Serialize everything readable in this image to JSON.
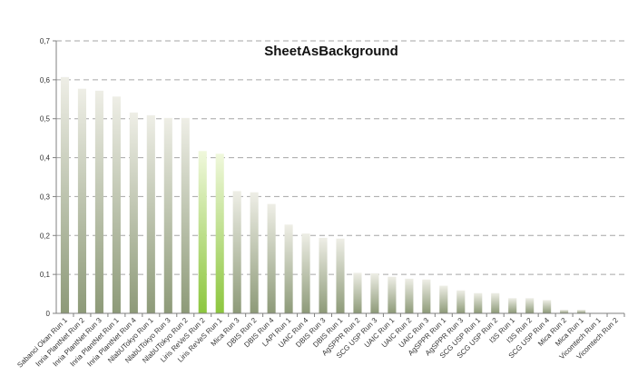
{
  "chart_data": {
    "type": "bar",
    "title": "SheetAsBackground",
    "xlabel": "",
    "ylabel": "",
    "ylim": [
      0,
      0.7
    ],
    "yticks": [
      "0",
      "0,1",
      "0,2",
      "0,3",
      "0,4",
      "0,5",
      "0,6",
      "0,7"
    ],
    "grid": true,
    "legend": "none",
    "categories": [
      "Sabanci Okan Run 1",
      "Inria PlantNet Run 2",
      "Inria PlantNet Run 3",
      "Inria PlantNet Run 1",
      "Inria PlantNet Run 4",
      "NlabUTokyo Run 1",
      "NlabUTokyo Run 3",
      "NlabUTokyo Run 2",
      "Liris ReVeS Run 2",
      "Liris ReVeS Run 1",
      "Mica Run 3",
      "DBIS Run 2",
      "DBIS Run 4",
      "LAPI Run 1",
      "UAIC Run 4",
      "DBIS Run 3",
      "DBIS Run 1",
      "AgSPPR Run 2",
      "SCG USP Run 3",
      "UAIC Run 1",
      "UAIC Run 2",
      "UAIC Run 3",
      "AgSPPR Run 1",
      "AgSPPR Run 3",
      "SCG USP Run 1",
      "SCG USP Run 2",
      "I3S Run 1",
      "I3S Run 2",
      "SCG USP Run 4",
      "Mica Run 2",
      "Mica Run 1",
      "Vicomtech Run 1",
      "Vicomtech Run 2"
    ],
    "values": [
      0.607,
      0.577,
      0.572,
      0.557,
      0.516,
      0.509,
      0.502,
      0.502,
      0.417,
      0.41,
      0.314,
      0.311,
      0.281,
      0.228,
      0.205,
      0.194,
      0.192,
      0.104,
      0.103,
      0.094,
      0.089,
      0.087,
      0.071,
      0.059,
      0.052,
      0.052,
      0.039,
      0.039,
      0.034,
      0.009,
      0.009,
      0.0,
      0.0
    ],
    "highlighted_categories": [
      "Liris ReVeS Run 2",
      "Liris ReVeS Run 1"
    ],
    "colors": {
      "bar_top": "#eeeee6",
      "bar_bottom": "#8d9a78",
      "highlight_top": "#f0f8dc",
      "highlight_bottom": "#8cc63e",
      "grid": "#a6a6a6",
      "axis": "#808080"
    }
  }
}
